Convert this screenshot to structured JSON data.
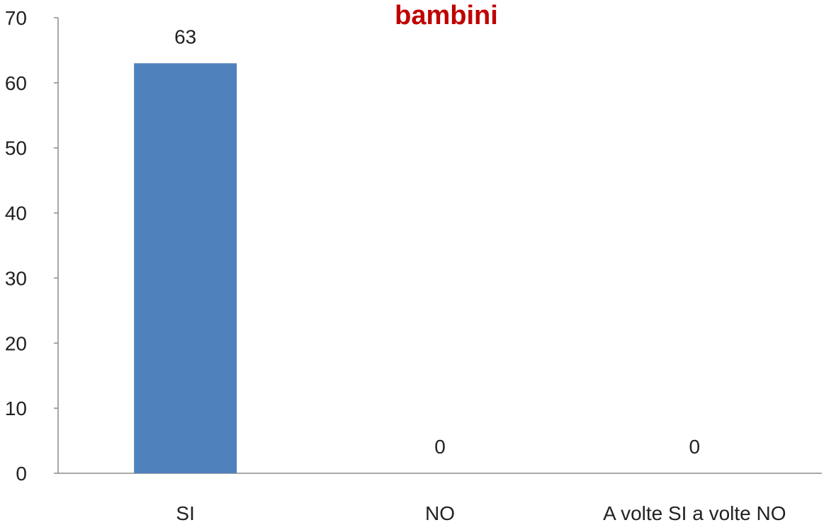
{
  "chart_data": {
    "type": "bar",
    "title": "bambini",
    "categories": [
      "SI",
      "NO",
      "A volte SI a volte NO"
    ],
    "values": [
      63,
      0,
      0
    ],
    "data_labels": [
      "63",
      "0",
      "0"
    ],
    "ylim": [
      0,
      70
    ],
    "yticks": [
      0,
      10,
      20,
      30,
      40,
      50,
      60,
      70
    ],
    "xlabel": "",
    "ylabel": "",
    "grid": false,
    "legend": "none",
    "bar_color": "#4f81bd",
    "title_color": "#c00000",
    "axis_color": "#8c8c8c"
  }
}
